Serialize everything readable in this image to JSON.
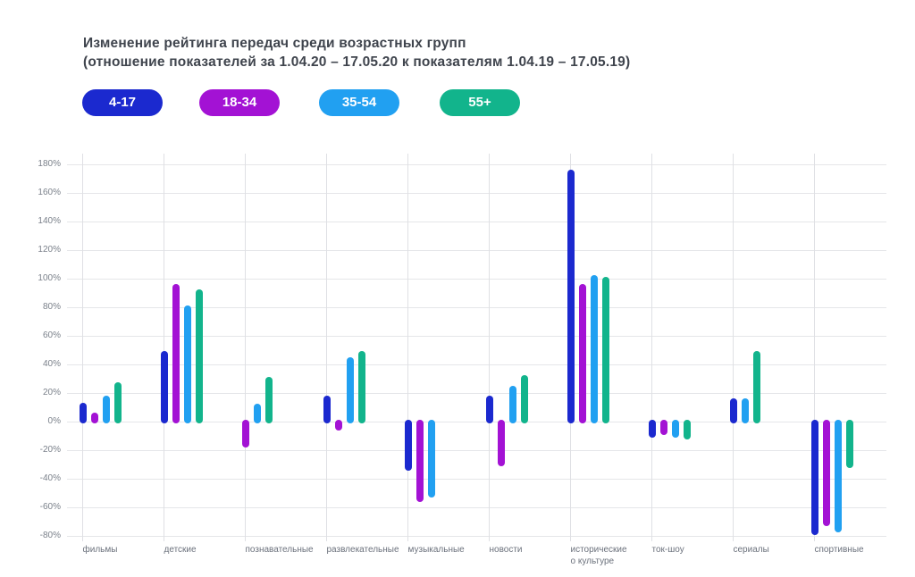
{
  "title": {
    "line1": "Изменение рейтинга передач среди возрастных групп",
    "line2": "(отношение показателей за 1.04.20 – 17.05.20 к показателям 1.04.19 – 17.05.19)"
  },
  "legend": {
    "items": [
      {
        "label": "4-17",
        "color": "#1b29cf"
      },
      {
        "label": "18-34",
        "color": "#a312d4"
      },
      {
        "label": "35-54",
        "color": "#21a0f1"
      },
      {
        "label": "55+",
        "color": "#12b48c"
      }
    ]
  },
  "chart_data": {
    "type": "bar",
    "title": "Изменение рейтинга передач среди возрастных групп (отношение показателей за 1.04.20 – 17.05.20 к показателям 1.04.19 – 17.05.19)",
    "categories": [
      "фильмы",
      "детские",
      "познавательные",
      "развлекательные",
      "музыкальные",
      "новости",
      "исторические\nо культуре",
      "ток-шоу",
      "сериалы",
      "спортивные"
    ],
    "series": [
      {
        "name": "4-17",
        "color": "#1b29cf",
        "values": [
          12,
          48,
          0,
          17,
          -33,
          17,
          175,
          -10,
          15,
          -78
        ]
      },
      {
        "name": "18-34",
        "color": "#a312d4",
        "values": [
          5,
          95,
          -17,
          -5,
          -55,
          -30,
          95,
          -8,
          0,
          -72
        ]
      },
      {
        "name": "35-54",
        "color": "#21a0f1",
        "values": [
          17,
          80,
          11,
          44,
          -52,
          24,
          101,
          -10,
          15,
          -76
        ]
      },
      {
        "name": "55+",
        "color": "#12b48c",
        "values": [
          26,
          91,
          30,
          48,
          0,
          31,
          100,
          -11,
          48,
          -31
        ]
      }
    ],
    "y_axis": {
      "min": -80,
      "max": 180,
      "step": 20,
      "unit": "%",
      "tick_labels": [
        "180%",
        "160%",
        "140%",
        "120%",
        "100%",
        "80%",
        "60%",
        "40%",
        "20%",
        "0%",
        "-20%",
        "-40%",
        "-60%",
        "-80%"
      ]
    },
    "grid": true,
    "legend_position": "top"
  }
}
